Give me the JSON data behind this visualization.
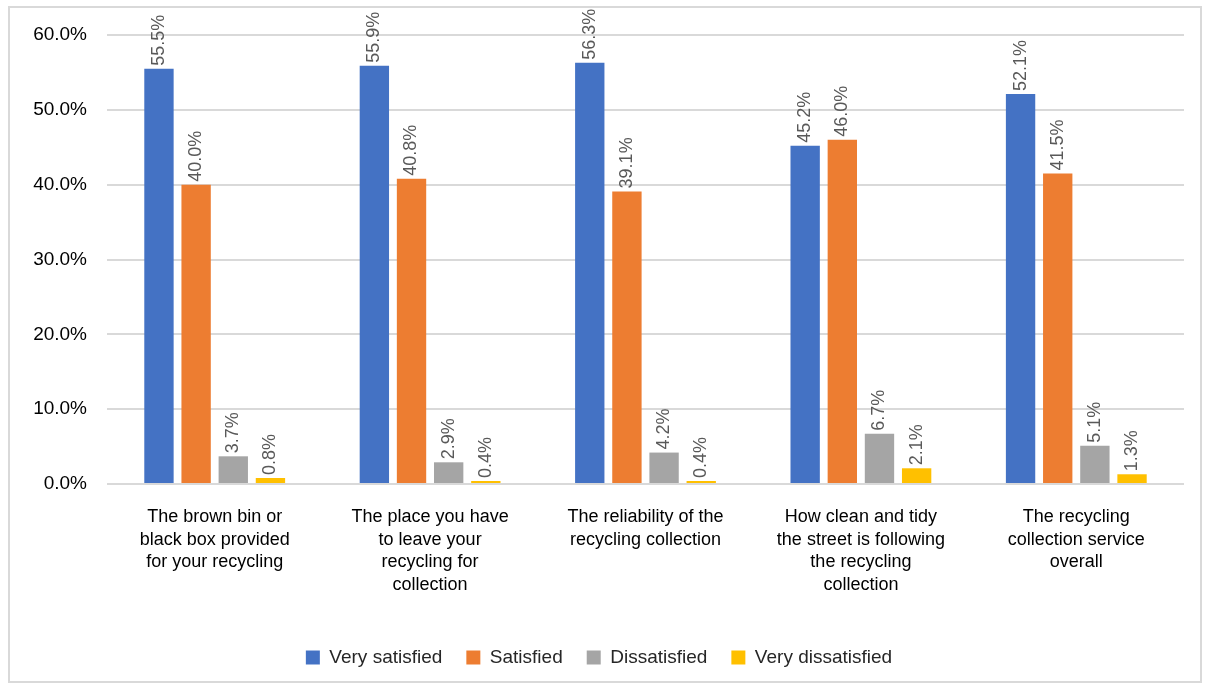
{
  "chart_data": {
    "type": "bar",
    "categories": [
      "The brown bin or black box provided for your recycling",
      "The place you have to leave your recycling for collection",
      "The reliability of the recycling collection",
      "How clean and tidy the street is following the recycling collection",
      "The recycling collection service overall"
    ],
    "series": [
      {
        "name": "Very satisfied",
        "color": "#4472c4",
        "values": [
          55.5,
          55.9,
          56.3,
          45.2,
          52.1
        ],
        "value_labels": [
          "55.5%",
          "55.9%",
          "56.3%",
          "45.2%",
          "52.1%"
        ]
      },
      {
        "name": "Satisfied",
        "color": "#ed7d31",
        "values": [
          40.0,
          40.8,
          39.1,
          46.0,
          41.5
        ],
        "value_labels": [
          "40.0%",
          "40.8%",
          "39.1%",
          "46.0%",
          "41.5%"
        ]
      },
      {
        "name": "Dissatisfied",
        "color": "#a5a5a5",
        "values": [
          3.7,
          2.9,
          4.2,
          6.7,
          5.1
        ],
        "value_labels": [
          "3.7%",
          "2.9%",
          "4.2%",
          "6.7%",
          "5.1%"
        ]
      },
      {
        "name": "Very dissatisfied",
        "color": "#ffc000",
        "values": [
          0.8,
          0.4,
          0.4,
          2.1,
          1.3
        ],
        "value_labels": [
          "0.8%",
          "0.4%",
          "0.4%",
          "2.1%",
          "1.3%"
        ]
      }
    ],
    "ylim": [
      0,
      60
    ],
    "yticks": [
      {
        "value": 0,
        "label": "0.0%"
      },
      {
        "value": 10,
        "label": "10.0%"
      },
      {
        "value": 20,
        "label": "20.0%"
      },
      {
        "value": 30,
        "label": "30.0%"
      },
      {
        "value": 40,
        "label": "40.0%"
      },
      {
        "value": 50,
        "label": "50.0%"
      },
      {
        "value": 60,
        "label": "60.0%"
      }
    ],
    "grid": "y",
    "legend": "bottom"
  }
}
